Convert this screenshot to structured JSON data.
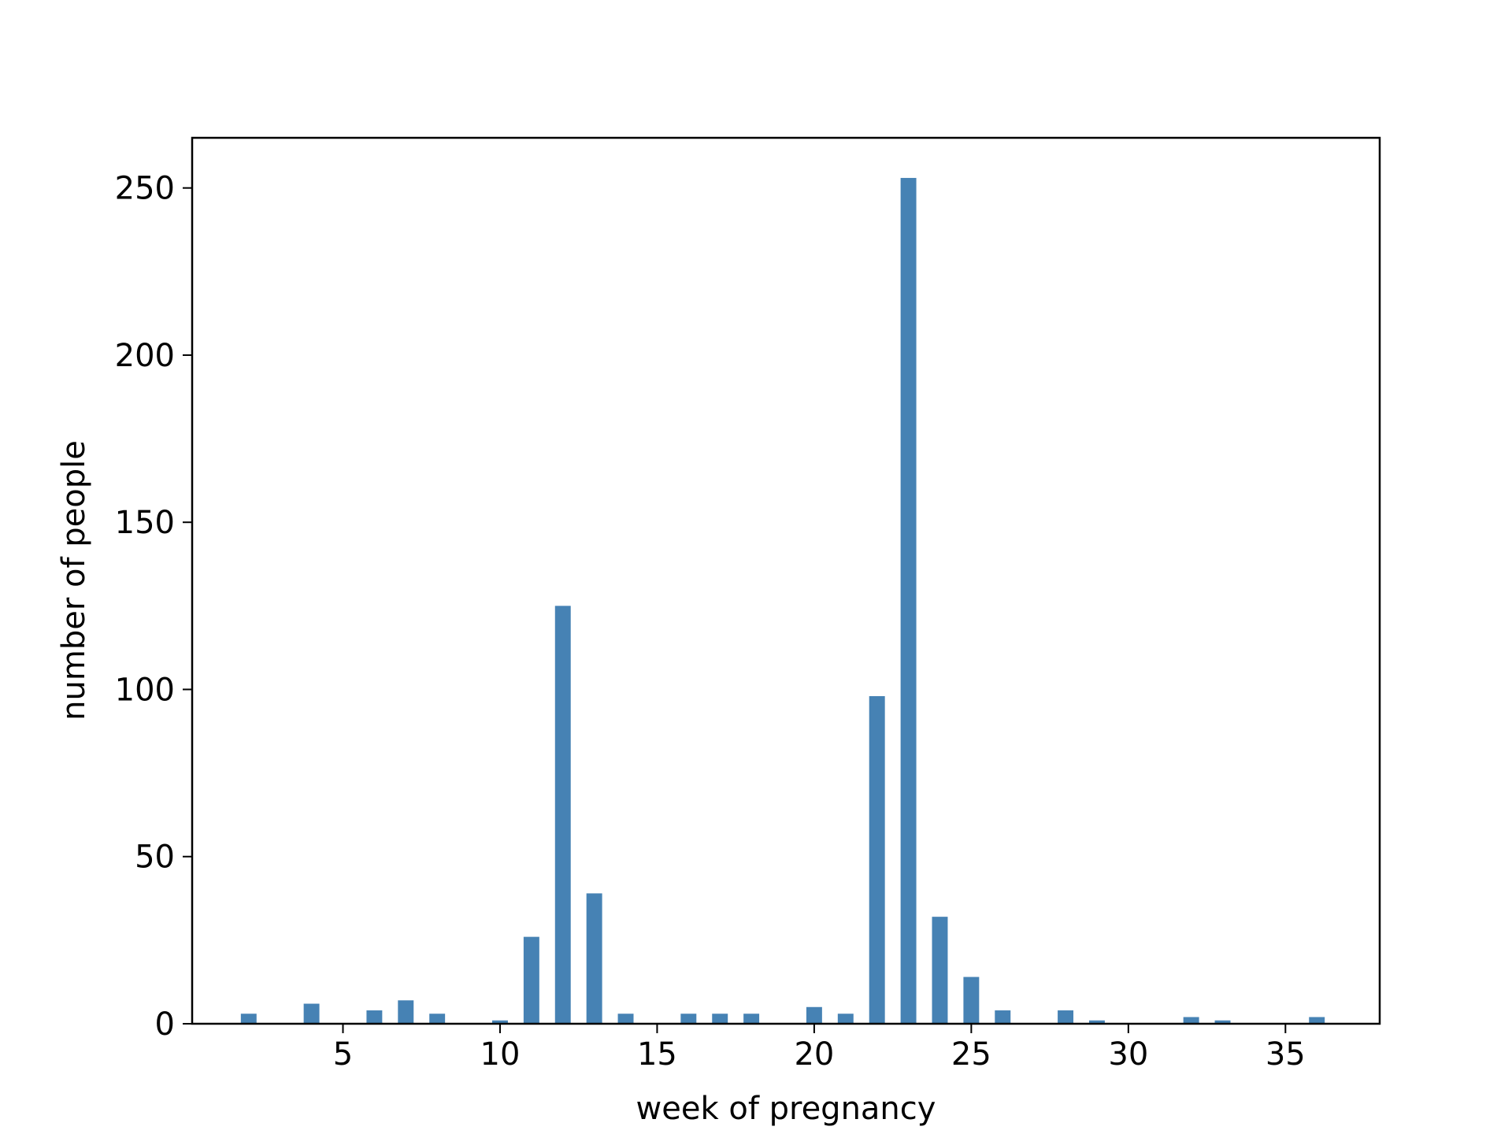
{
  "chart_data": {
    "type": "bar",
    "title": "",
    "xlabel": "week of pregnancy",
    "ylabel": "number of people",
    "xlim": [
      0.2,
      38
    ],
    "ylim": [
      0,
      265
    ],
    "x_ticks": [
      5,
      10,
      15,
      20,
      25,
      30,
      35
    ],
    "y_ticks": [
      0,
      50,
      100,
      150,
      200,
      250
    ],
    "bar_color": "#4682b4",
    "grid": false,
    "legend": "none",
    "x": [
      2,
      4,
      6,
      7,
      8,
      10,
      11,
      12,
      13,
      14,
      16,
      17,
      18,
      20,
      21,
      22,
      23,
      24,
      25,
      26,
      28,
      29,
      32,
      33,
      36
    ],
    "values": [
      3,
      6,
      4,
      7,
      3,
      1,
      26,
      125,
      39,
      3,
      3,
      3,
      3,
      5,
      3,
      98,
      253,
      32,
      14,
      4,
      4,
      1,
      2,
      1,
      2
    ]
  }
}
